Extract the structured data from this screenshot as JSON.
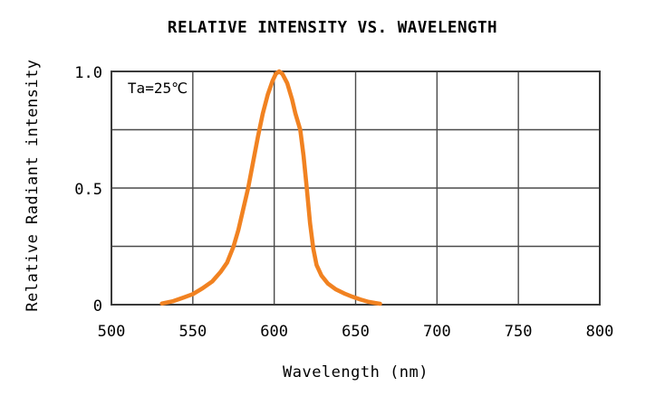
{
  "chart_data": {
    "type": "line",
    "title": "RELATIVE INTENSITY VS. WAVELENGTH",
    "xlabel": "Wavelength (nm)",
    "ylabel": "Relative Radiant intensity",
    "annotation": "Ta=25℃",
    "xlim": [
      500,
      800
    ],
    "ylim": [
      0,
      1.0
    ],
    "x_ticks": [
      500,
      550,
      600,
      650,
      700,
      750,
      800
    ],
    "x_tick_labels": [
      "500",
      "550",
      "600",
      "650",
      "700",
      "750",
      "800"
    ],
    "y_ticks": [
      1.0,
      0.5,
      0
    ],
    "y_tick_labels": [
      "1.0",
      "0.5",
      "0"
    ],
    "x_gridlines": [
      550,
      600,
      650,
      700,
      750
    ],
    "y_gridlines": [
      0.25,
      0.5,
      0.75
    ],
    "grid": true,
    "legend": "none",
    "colors": {
      "curve": "#F18221",
      "grid": "#4a4a4a",
      "frame": "#3a3a3a",
      "text": "#000000",
      "background": "#ffffff"
    },
    "series": [
      {
        "name": "relative radiant intensity",
        "color": "#F18221",
        "peak_nm": 603,
        "points": [
          [
            531,
            0.005
          ],
          [
            538,
            0.015
          ],
          [
            544,
            0.03
          ],
          [
            550,
            0.045
          ],
          [
            556,
            0.07
          ],
          [
            562,
            0.1
          ],
          [
            567,
            0.14
          ],
          [
            571,
            0.18
          ],
          [
            575,
            0.25
          ],
          [
            578,
            0.32
          ],
          [
            581,
            0.41
          ],
          [
            584,
            0.5
          ],
          [
            587,
            0.61
          ],
          [
            590,
            0.72
          ],
          [
            593,
            0.82
          ],
          [
            596,
            0.9
          ],
          [
            599,
            0.96
          ],
          [
            601,
            0.99
          ],
          [
            603,
            1.0
          ],
          [
            605,
            0.99
          ],
          [
            608,
            0.95
          ],
          [
            611,
            0.88
          ],
          [
            613,
            0.82
          ],
          [
            616,
            0.75
          ],
          [
            618,
            0.64
          ],
          [
            620,
            0.5
          ],
          [
            622,
            0.35
          ],
          [
            624,
            0.24
          ],
          [
            626,
            0.17
          ],
          [
            629,
            0.125
          ],
          [
            633,
            0.09
          ],
          [
            638,
            0.065
          ],
          [
            643,
            0.048
          ],
          [
            648,
            0.034
          ],
          [
            653,
            0.022
          ],
          [
            658,
            0.012
          ],
          [
            662,
            0.007
          ],
          [
            665,
            0.004
          ]
        ]
      }
    ]
  }
}
